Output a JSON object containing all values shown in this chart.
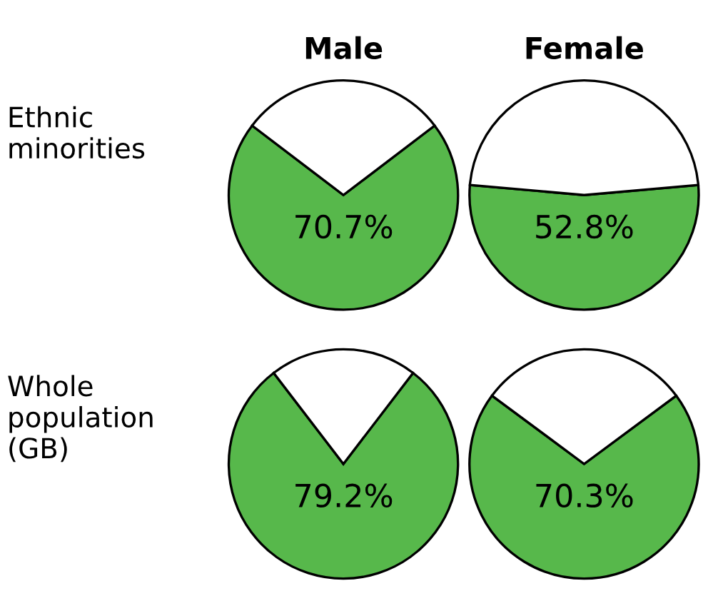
{
  "chart_data": [
    {
      "type": "pie",
      "title": "Male",
      "ylabel": "Ethnic\nminorities",
      "categories": [
        null,
        null
      ],
      "values": [
        70.7,
        29.3
      ],
      "colors": [
        "#57b84b",
        "#ffffff"
      ],
      "value_labels": [
        "70.7%",
        null
      ]
    },
    {
      "type": "pie",
      "title": "Female",
      "categories": [
        null,
        null
      ],
      "values": [
        52.8,
        47.2
      ],
      "colors": [
        "#57b84b",
        "#ffffff"
      ],
      "value_labels": [
        "52.8%",
        null
      ]
    },
    {
      "type": "pie",
      "ylabel": "Whole\npopulation\n(GB)",
      "categories": [
        null,
        null
      ],
      "values": [
        79.2,
        20.8
      ],
      "colors": [
        "#57b84b",
        "#ffffff"
      ],
      "value_labels": [
        "79.2%",
        null
      ]
    },
    {
      "type": "pie",
      "categories": [
        null,
        null
      ],
      "values": [
        70.3,
        29.7
      ],
      "colors": [
        "#57b84b",
        "#ffffff"
      ],
      "value_labels": [
        "70.3%",
        null
      ]
    }
  ]
}
